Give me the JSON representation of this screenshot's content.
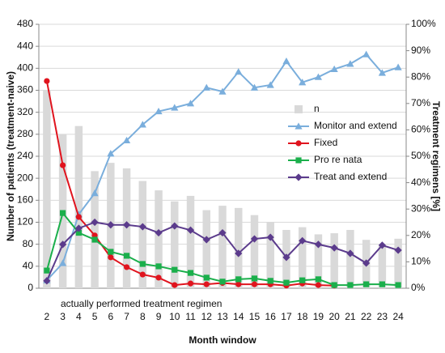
{
  "chart_data": {
    "type": "combo",
    "y_label": "Number of patients (treatment-naive)",
    "y2_label": "Treatment regimens [%]",
    "x_label": "Month window",
    "annotation": "actually performed treatment regimen",
    "categories": [
      "2",
      "3",
      "4",
      "5",
      "6",
      "7",
      "8",
      "9",
      "10",
      "11",
      "12",
      "13",
      "14",
      "15",
      "16",
      "17",
      "18",
      "19",
      "20",
      "21",
      "22",
      "23",
      "24"
    ],
    "ylim": [
      0,
      480
    ],
    "yticks": [
      0,
      40,
      80,
      120,
      160,
      200,
      240,
      280,
      320,
      360,
      400,
      440,
      480
    ],
    "y2lim": [
      0,
      100
    ],
    "y2ticks": [
      {
        "value": 0,
        "label": "0%"
      },
      {
        "value": 10,
        "label": "10%"
      },
      {
        "value": 20,
        "label": "20%"
      },
      {
        "value": 30,
        "label": "30%"
      },
      {
        "value": 40,
        "label": "40%"
      },
      {
        "value": 50,
        "label": "50%"
      },
      {
        "value": 60,
        "label": "60%"
      },
      {
        "value": 70,
        "label": "70%"
      },
      {
        "value": 80,
        "label": "80%"
      },
      {
        "value": 90,
        "label": "90%"
      },
      {
        "value": 100,
        "label": "100%"
      }
    ],
    "grid": true,
    "series": [
      {
        "name": "n",
        "type": "bar",
        "color": "#d9d9d9",
        "values": [
          360,
          280,
          295,
          213,
          228,
          218,
          195,
          178,
          158,
          168,
          142,
          150,
          146,
          133,
          120,
          106,
          111,
          98,
          100,
          106,
          88,
          77,
          90
        ]
      },
      {
        "name": "Monitor and extend",
        "type": "line",
        "axis": "y2",
        "marker": "triangle",
        "color": "#7aaedc",
        "values": [
          3,
          9.5,
          28,
          36,
          51,
          56,
          62,
          67,
          68.4,
          70,
          76,
          74.5,
          82,
          76,
          77,
          86,
          78,
          80,
          83,
          85,
          88.6,
          81.6,
          83.7
        ]
      },
      {
        "name": "Fixed",
        "type": "line",
        "axis": "y2",
        "marker": "circle",
        "color": "#e0141e",
        "values": [
          78.5,
          46.6,
          27,
          20,
          11.7,
          8,
          5.2,
          4,
          1.2,
          1.8,
          1.5,
          2,
          1.5,
          1.5,
          1.5,
          1,
          1.8,
          1.2,
          1,
          null,
          null,
          null,
          null
        ]
      },
      {
        "name": "Pro re nata",
        "type": "line",
        "axis": "y2",
        "marker": "square",
        "color": "#1aaf4b",
        "values": [
          6.7,
          28.5,
          21,
          18.4,
          13.8,
          12.3,
          9.2,
          8.3,
          7,
          5.8,
          4,
          2.5,
          3.4,
          3.7,
          2.8,
          2.1,
          3,
          3.4,
          1.2,
          1.2,
          1.5,
          1.5,
          1.2
        ]
      },
      {
        "name": "Treat and extend",
        "type": "line",
        "axis": "y2",
        "marker": "diamond",
        "color": "#5b3b8c",
        "values": [
          2.8,
          16.6,
          22.7,
          25,
          24,
          24,
          23.3,
          21,
          23.6,
          22,
          18.4,
          21,
          13.2,
          18.7,
          19.3,
          11.7,
          18,
          16.6,
          15.3,
          13.2,
          9.5,
          16.3,
          14.4
        ]
      }
    ]
  }
}
